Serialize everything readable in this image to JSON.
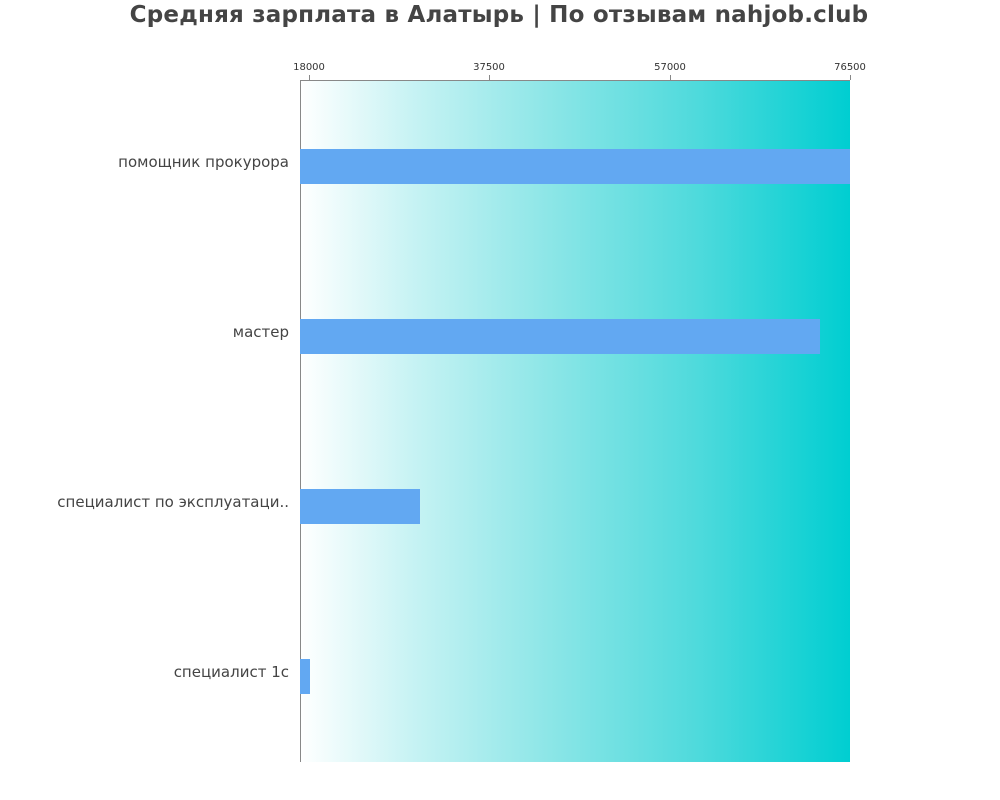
{
  "title": "Средняя зарплата в Алатырь | По отзывам nahjob.club",
  "colors": {
    "bar": "#62a8f2",
    "gradient_start": "#ffffff",
    "gradient_end": "#00ced1",
    "axis": "#888888",
    "text": "#444444"
  },
  "chart_data": {
    "type": "bar",
    "orientation": "horizontal",
    "title": "Средняя зарплата в Алатырь | По отзывам nahjob.club",
    "xlabel": "",
    "ylabel": "",
    "categories": [
      "помощник прокурора",
      "мастер",
      "специалист по эксплуатаци..",
      "специалист 1с"
    ],
    "values": [
      76500,
      73250,
      30000,
      18100
    ],
    "xticks": [
      "18000",
      "37500",
      "57000",
      "76500"
    ],
    "xlim": [
      17027,
      76500
    ],
    "axis_position": "top",
    "grid": false,
    "legend": null,
    "background": "horizontal gradient white to turquoise"
  }
}
